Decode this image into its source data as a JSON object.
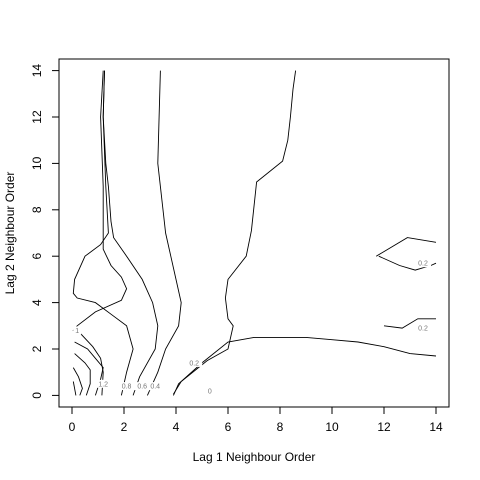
{
  "chart_data": {
    "type": "contour",
    "title": "",
    "xlabel": "Lag 1 Neighbour Order",
    "ylabel": "Lag 2 Neighbour Order",
    "xlim": [
      -0.5,
      14.5
    ],
    "ylim": [
      -0.5,
      14.5
    ],
    "x_ticks": [
      0,
      2,
      4,
      6,
      8,
      10,
      12,
      14
    ],
    "y_ticks": [
      0,
      2,
      4,
      6,
      8,
      10,
      12,
      14
    ],
    "grid": false,
    "legend": "none",
    "line_color": "#000000",
    "label_color": "#777777",
    "contours": [
      {
        "level_label": "0",
        "label_at": [
          5.3,
          0.2
        ],
        "points": [
          [
            3.9,
            0
          ],
          [
            4.1,
            0.5
          ],
          [
            5.0,
            1.4
          ],
          [
            6.0,
            2.3
          ],
          [
            7.0,
            2.5
          ],
          [
            8.0,
            2.5
          ],
          [
            9.0,
            2.5
          ],
          [
            10.0,
            2.4
          ],
          [
            11.0,
            2.3
          ],
          [
            12.0,
            2.1
          ],
          [
            13.0,
            1.8
          ],
          [
            14.0,
            1.7
          ]
        ]
      },
      {
        "level_label": "0",
        "label_at": [
          5.3,
          0.2
        ],
        "points": [
          [
            4.0,
            0
          ],
          [
            4.3,
            0.6
          ],
          [
            5.1,
            1.4
          ],
          [
            6.0,
            2.0
          ],
          [
            7.0,
            2.5
          ],
          [
            8.0,
            2.5
          ],
          [
            9.0,
            2.5
          ],
          [
            10.0,
            2.4
          ],
          [
            11.0,
            2.3
          ],
          [
            12.0,
            2.1
          ],
          [
            13.0,
            1.8
          ],
          [
            14.0,
            1.7
          ]
        ]
      },
      {
        "level_label": "0.2",
        "label_at": [
          4.7,
          1.4
        ],
        "points": [
          [
            3.9,
            0.05
          ],
          [
            4.2,
            0.6
          ],
          [
            5.2,
            1.5
          ],
          [
            6.0,
            2.0
          ],
          [
            6.2,
            3.0
          ],
          [
            6.0,
            3.3
          ],
          [
            5.9,
            4.2
          ],
          [
            6.0,
            5.0
          ],
          [
            6.7,
            6.0
          ],
          [
            6.9,
            7.1
          ],
          [
            7.1,
            9.2
          ],
          [
            8.1,
            10.1
          ],
          [
            8.3,
            11.0
          ],
          [
            8.4,
            12.0
          ],
          [
            8.5,
            13.2
          ],
          [
            8.6,
            14
          ]
        ]
      },
      {
        "level_label": "0.2",
        "label_at": [
          13.5,
          5.7
        ],
        "points": [
          [
            11.7,
            6.0
          ],
          [
            12.9,
            6.8
          ],
          [
            14,
            6.6
          ]
        ]
      },
      {
        "level_label": "0.2",
        "label_at": [
          13.5,
          5.7
        ],
        "points": [
          [
            11.8,
            6.0
          ],
          [
            12.6,
            5.6
          ],
          [
            13.2,
            5.4
          ],
          [
            13.8,
            5.6
          ],
          [
            14,
            5.7
          ]
        ]
      },
      {
        "level_label": "0.2",
        "label_at": [
          13.5,
          2.9
        ],
        "points": [
          [
            12.0,
            3.0
          ],
          [
            12.7,
            2.9
          ],
          [
            13.3,
            3.3
          ],
          [
            14,
            3.3
          ]
        ]
      },
      {
        "level_label": "0.4",
        "label_at": [
          3.2,
          0.4
        ],
        "points": [
          [
            2.9,
            0
          ],
          [
            3.3,
            1.0
          ],
          [
            3.6,
            2.0
          ],
          [
            4.1,
            3.0
          ],
          [
            4.2,
            4.0
          ],
          [
            4.0,
            5.0
          ],
          [
            3.8,
            6.0
          ],
          [
            3.6,
            7.0
          ],
          [
            3.5,
            8.0
          ],
          [
            3.4,
            9.0
          ],
          [
            3.3,
            10.0
          ],
          [
            3.35,
            12.0
          ],
          [
            3.4,
            14
          ]
        ]
      },
      {
        "level_label": "0.6",
        "label_at": [
          2.7,
          0.4
        ],
        "points": [
          [
            2.35,
            0
          ],
          [
            2.6,
            0.8
          ],
          [
            3.2,
            2.0
          ],
          [
            3.3,
            3.0
          ],
          [
            3.1,
            4.0
          ],
          [
            2.7,
            5.0
          ],
          [
            2.1,
            6.0
          ],
          [
            1.6,
            6.8
          ],
          [
            1.5,
            7.5
          ],
          [
            1.4,
            9.0
          ],
          [
            1.3,
            10.0
          ],
          [
            1.2,
            12.0
          ],
          [
            1.25,
            14
          ]
        ]
      },
      {
        "level_label": "0.8",
        "label_at": [
          2.1,
          0.4
        ],
        "points": [
          [
            1.9,
            0
          ],
          [
            2.1,
            1.0
          ],
          [
            2.35,
            2.0
          ],
          [
            2.1,
            3.0
          ],
          [
            1.5,
            3.5
          ],
          [
            0.9,
            4.0
          ],
          [
            0.2,
            4.2
          ],
          [
            0.05,
            4.4
          ],
          [
            0.1,
            5.0
          ],
          [
            0.5,
            6.0
          ],
          [
            1.1,
            6.5
          ],
          [
            1.4,
            7.0
          ],
          [
            1.3,
            9.0
          ],
          [
            1.2,
            12.0
          ],
          [
            1.25,
            14
          ]
        ]
      },
      {
        "level_label": "1",
        "label_at": [
          0.2,
          2.8
        ],
        "points": [
          [
            1.15,
            0
          ],
          [
            1.2,
            1.0
          ],
          [
            1.1,
            1.6
          ],
          [
            0.8,
            2.1
          ],
          [
            0.3,
            2.7
          ],
          [
            0.05,
            2.8
          ],
          [
            0.2,
            3.0
          ],
          [
            0.9,
            3.6
          ],
          [
            1.9,
            4.1
          ],
          [
            2.1,
            4.6
          ],
          [
            1.9,
            5.1
          ],
          [
            1.5,
            5.6
          ],
          [
            1.2,
            6.3
          ],
          [
            1.2,
            7.0
          ],
          [
            1.2,
            9.0
          ],
          [
            1.1,
            12.0
          ],
          [
            1.2,
            14
          ]
        ]
      },
      {
        "level_label": "1.2",
        "label_at": [
          1.2,
          0.5
        ],
        "points": [
          [
            0.9,
            0
          ],
          [
            1.1,
            0.7
          ],
          [
            1.2,
            1.2
          ],
          [
            0.9,
            1.6
          ],
          [
            0.6,
            2.0
          ],
          [
            0.1,
            2.3
          ]
        ]
      },
      {
        "level_label": "",
        "label_at": null,
        "points": [
          [
            0.55,
            0
          ],
          [
            0.7,
            0.5
          ],
          [
            0.7,
            1.1
          ],
          [
            0.5,
            1.4
          ],
          [
            0.1,
            1.8
          ]
        ]
      },
      {
        "level_label": "",
        "label_at": null,
        "points": [
          [
            0.3,
            0
          ],
          [
            0.4,
            0.3
          ],
          [
            0.25,
            0.8
          ],
          [
            0.05,
            1.2
          ]
        ]
      },
      {
        "level_label": "",
        "label_at": null,
        "points": [
          [
            0.15,
            0
          ],
          [
            0.1,
            0.3
          ],
          [
            0.05,
            0.6
          ]
        ]
      }
    ]
  }
}
